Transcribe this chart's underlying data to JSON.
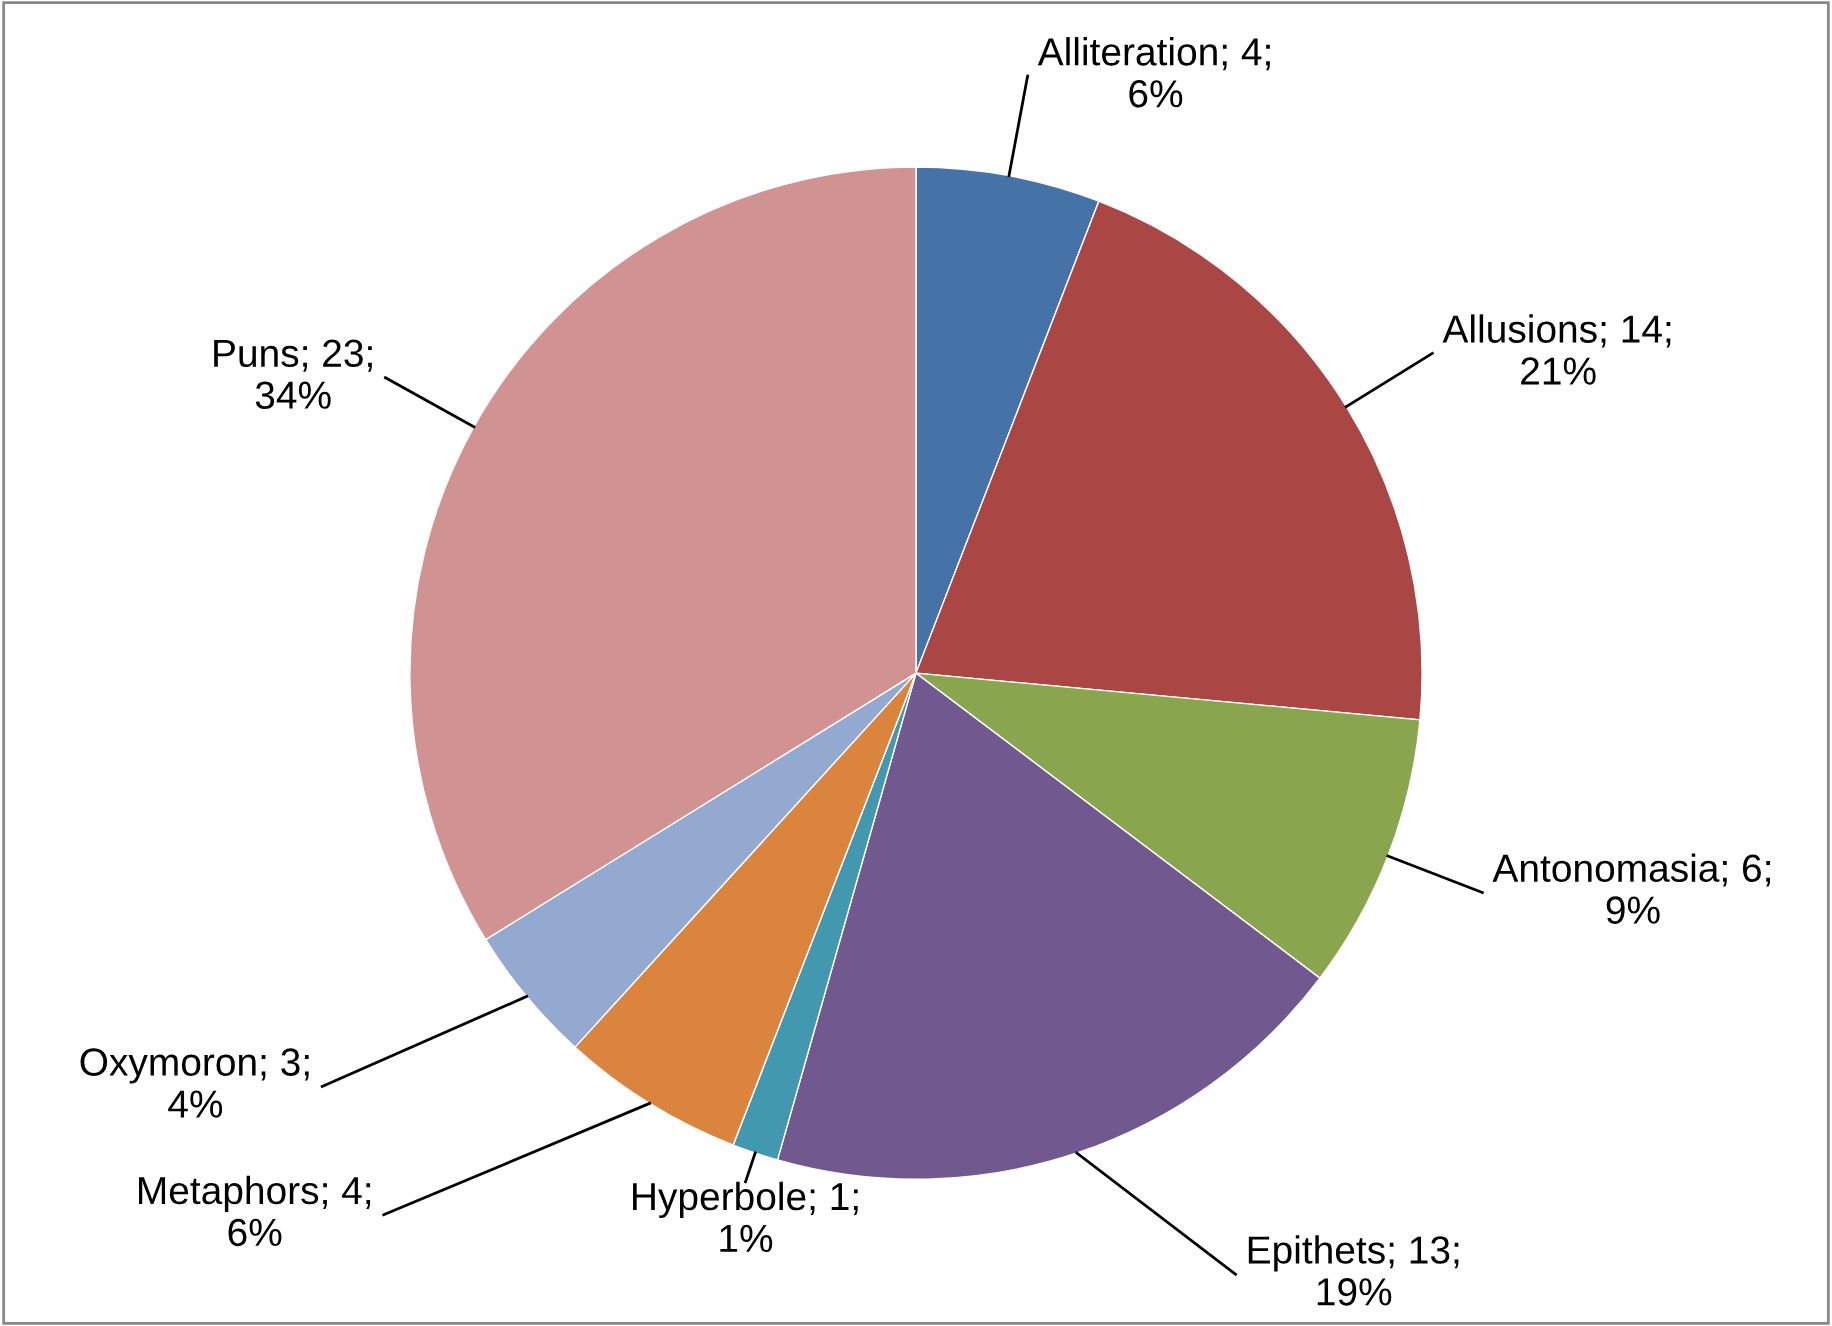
{
  "chart_data": {
    "type": "pie",
    "categories": [
      "Alliteration",
      "Allusions",
      "Antonomasia",
      "Epithets",
      "Hyperbole",
      "Metaphors",
      "Oxymoron",
      "Puns"
    ],
    "values": [
      4,
      14,
      6,
      13,
      1,
      4,
      3,
      23
    ],
    "colors": [
      "#4572a7",
      "#aa4643",
      "#89a54e",
      "#71588f",
      "#4198af",
      "#db843d",
      "#93a9cf",
      "#d19392"
    ],
    "value_labels": [
      "4; 6%",
      "14; 21%",
      "6; 9%",
      "13; 19%",
      "1; 1%",
      "4; 6%",
      "3; 4%",
      "23; 34%"
    ],
    "legend": false
  }
}
